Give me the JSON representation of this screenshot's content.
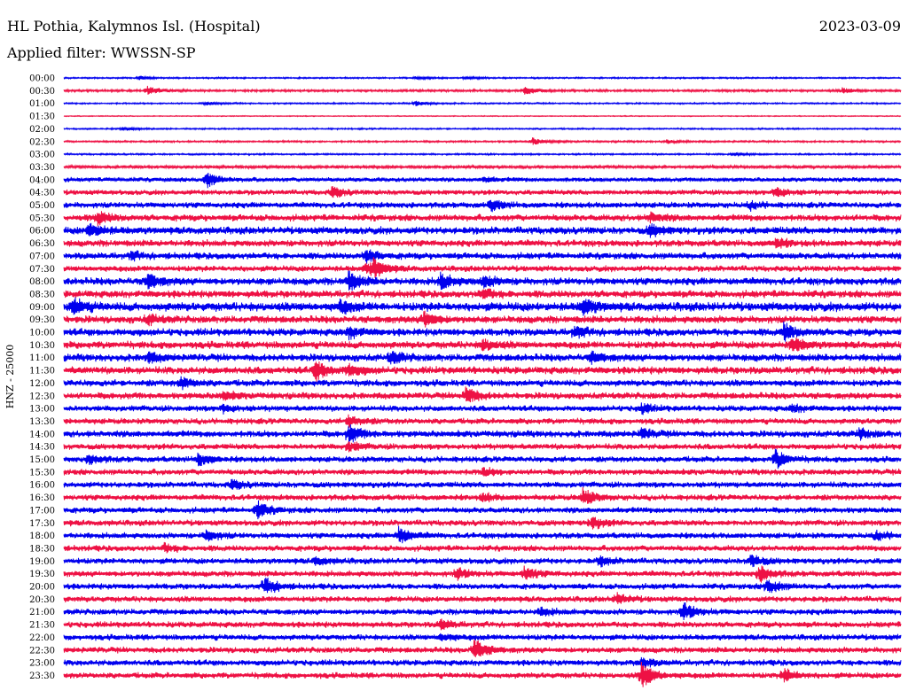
{
  "header": {
    "station": "HL Pothia, Kalymnos Isl. (Hospital)",
    "date": "2023-03-09",
    "filter": "Applied filter: WWSSN-SP"
  },
  "colors": {
    "odd": "#0000ee",
    "even": "#ee1144"
  },
  "chart_data": {
    "type": "line",
    "title": "HL Pothia, Kalymnos Isl. (Hospital)",
    "ylabel": "HNZ - 25000",
    "y_ticks": [
      "00:00",
      "00:30",
      "01:00",
      "01:30",
      "02:00",
      "02:30",
      "03:00",
      "03:30",
      "04:00",
      "04:30",
      "05:00",
      "05:30",
      "06:00",
      "06:30",
      "07:00",
      "07:30",
      "08:00",
      "08:30",
      "09:00",
      "09:30",
      "10:00",
      "10:30",
      "11:00",
      "11:30",
      "12:00",
      "12:30",
      "13:00",
      "13:30",
      "14:00",
      "14:30",
      "15:00",
      "15:30",
      "16:00",
      "16:30",
      "17:00",
      "17:30",
      "18:00",
      "18:30",
      "19:00",
      "19:30",
      "20:00",
      "20:30",
      "21:00",
      "21:30",
      "22:00",
      "22:30",
      "23:00",
      "23:30"
    ],
    "noise_level": [
      1,
      1.5,
      1,
      0.6,
      1,
      1.2,
      1.1,
      2,
      3,
      3.5,
      4,
      4.5,
      5,
      4.5,
      4.5,
      4,
      5,
      5,
      6,
      5,
      5,
      5,
      5,
      5,
      4.5,
      4.5,
      4,
      4,
      4.5,
      4,
      4,
      4,
      4,
      4,
      4,
      4,
      4,
      4,
      4,
      4,
      4,
      4,
      4,
      4,
      4,
      4,
      4,
      4
    ],
    "events": [
      [
        [
          0.09,
          2
        ],
        [
          0.42,
          1.5
        ],
        [
          0.48,
          1.5
        ]
      ],
      [
        [
          0.1,
          5
        ],
        [
          0.55,
          5
        ],
        [
          0.93,
          3
        ]
      ],
      [
        [
          0.17,
          2
        ],
        [
          0.42,
          3
        ]
      ],
      [],
      [
        [
          0.07,
          2
        ]
      ],
      [
        [
          0.56,
          4
        ],
        [
          0.72,
          2
        ]
      ],
      [
        [
          0.8,
          2
        ]
      ],
      [],
      [
        [
          0.17,
          9
        ],
        [
          0.5,
          3
        ]
      ],
      [
        [
          0.32,
          6
        ],
        [
          0.85,
          6
        ]
      ],
      [
        [
          0.51,
          6
        ],
        [
          0.82,
          4
        ]
      ],
      [
        [
          0.04,
          7
        ],
        [
          0.7,
          5
        ]
      ],
      [
        [
          0.03,
          8
        ],
        [
          0.7,
          6
        ]
      ],
      [
        [
          0.85,
          5
        ]
      ],
      [
        [
          0.36,
          7
        ],
        [
          0.08,
          4
        ]
      ],
      [
        [
          0.37,
          9
        ],
        [
          0.36,
          5
        ]
      ],
      [
        [
          0.1,
          8
        ],
        [
          0.34,
          10
        ],
        [
          0.45,
          8
        ],
        [
          0.5,
          6
        ]
      ],
      [
        [
          0.5,
          5
        ]
      ],
      [
        [
          0.01,
          9
        ],
        [
          0.33,
          6
        ],
        [
          0.62,
          9
        ]
      ],
      [
        [
          0.43,
          8
        ],
        [
          0.1,
          5
        ]
      ],
      [
        [
          0.34,
          6
        ],
        [
          0.61,
          6
        ],
        [
          0.86,
          9
        ]
      ],
      [
        [
          0.5,
          6
        ],
        [
          0.87,
          8
        ]
      ],
      [
        [
          0.1,
          5
        ],
        [
          0.39,
          7
        ],
        [
          0.63,
          5
        ]
      ],
      [
        [
          0.3,
          11
        ],
        [
          0.34,
          6
        ]
      ],
      [
        [
          0.14,
          6
        ]
      ],
      [
        [
          0.48,
          9
        ],
        [
          0.19,
          4
        ]
      ],
      [
        [
          0.19,
          4
        ],
        [
          0.69,
          5
        ],
        [
          0.87,
          4
        ]
      ],
      [
        [
          0.34,
          6
        ]
      ],
      [
        [
          0.34,
          10
        ],
        [
          0.69,
          5
        ],
        [
          0.95,
          5
        ]
      ],
      [
        [
          0.34,
          5
        ]
      ],
      [
        [
          0.16,
          7
        ],
        [
          0.85,
          10
        ],
        [
          0.03,
          5
        ]
      ],
      [
        [
          0.5,
          4
        ]
      ],
      [
        [
          0.2,
          5
        ]
      ],
      [
        [
          0.62,
          9
        ],
        [
          0.5,
          4
        ]
      ],
      [
        [
          0.23,
          9
        ]
      ],
      [
        [
          0.63,
          7
        ]
      ],
      [
        [
          0.17,
          6
        ],
        [
          0.4,
          9
        ],
        [
          0.97,
          5
        ]
      ],
      [
        [
          0.12,
          4
        ]
      ],
      [
        [
          0.3,
          4
        ],
        [
          0.64,
          5
        ],
        [
          0.82,
          7
        ]
      ],
      [
        [
          0.47,
          6
        ],
        [
          0.55,
          7
        ],
        [
          0.83,
          9
        ]
      ],
      [
        [
          0.24,
          10
        ],
        [
          0.84,
          9
        ]
      ],
      [
        [
          0.66,
          6
        ]
      ],
      [
        [
          0.74,
          10
        ],
        [
          0.57,
          4
        ]
      ],
      [
        [
          0.45,
          5
        ]
      ],
      [
        [
          0.45,
          4
        ]
      ],
      [
        [
          0.49,
          12
        ]
      ],
      [
        [
          0.69,
          5
        ]
      ],
      [
        [
          0.69,
          14
        ],
        [
          0.86,
          7
        ]
      ]
    ]
  }
}
